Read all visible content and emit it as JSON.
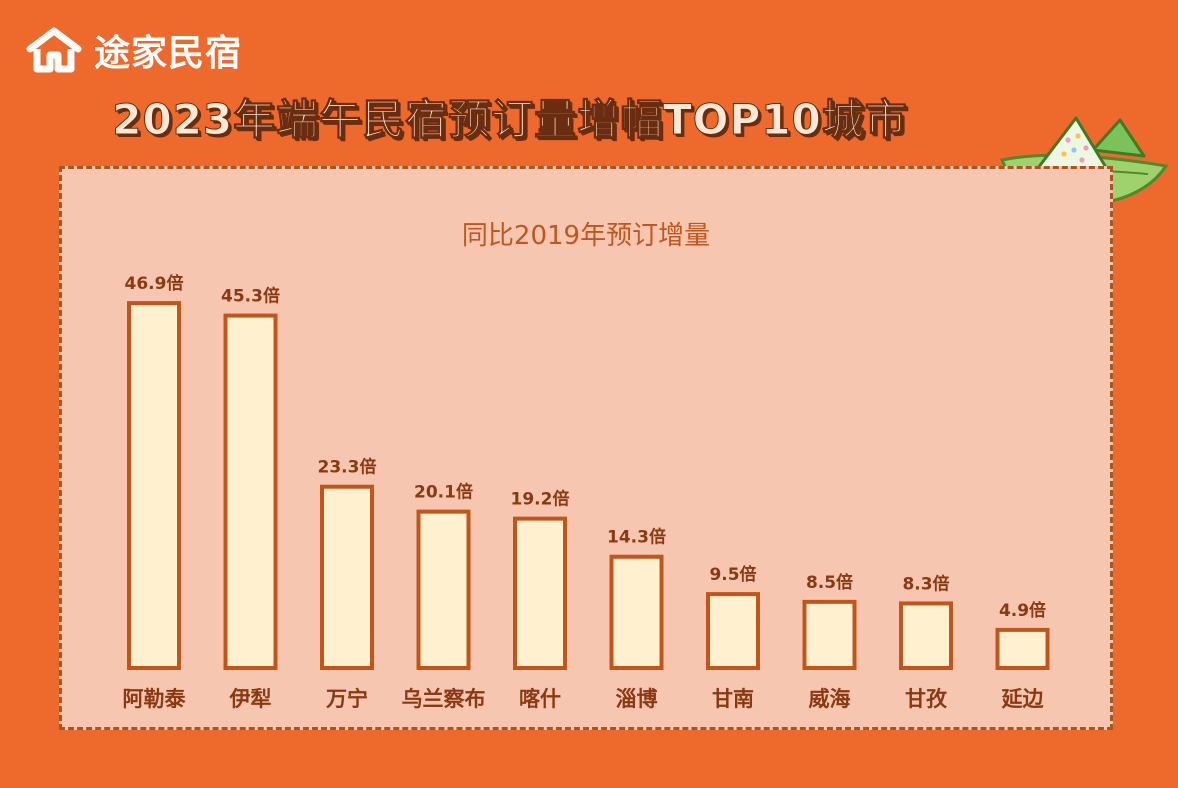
{
  "brand": {
    "logo_text": "途家民宿",
    "logo_icon": "house-icon"
  },
  "title": "2023年端午民宿预订量增幅TOP10城市",
  "decoration": "zongzi-icon",
  "colors": {
    "background": "#ee6a2c",
    "panel": "#f6c6b0",
    "bar_fill": "#fff1cf",
    "bar_stroke": "#c2561a",
    "label": "#8a3a12"
  },
  "chart_data": {
    "type": "bar",
    "title": "同比2019年预订增量",
    "categories": [
      "阿勒泰",
      "伊犁",
      "万宁",
      "乌兰察布",
      "喀什",
      "淄博",
      "甘南",
      "威海",
      "甘孜",
      "延边"
    ],
    "values": [
      46.9,
      45.3,
      23.3,
      20.1,
      19.2,
      14.3,
      9.5,
      8.5,
      8.3,
      4.9
    ],
    "value_labels": [
      "46.9倍",
      "45.3倍",
      "23.3倍",
      "20.1倍",
      "19.2倍",
      "14.3倍",
      "9.5倍",
      "8.5倍",
      "8.3倍",
      "4.9倍"
    ],
    "unit": "倍",
    "xlabel": "",
    "ylabel": "",
    "ylim": [
      0,
      50
    ],
    "grid": false,
    "legend": "none"
  }
}
